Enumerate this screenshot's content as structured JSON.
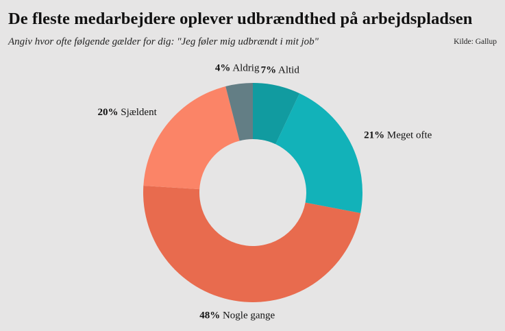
{
  "title": "De fleste medarbejdere oplever udbrændthed på arbejdspladsen",
  "subtitle": "Angiv hvor ofte følgende gælder for dig: \"Jeg føler mig udbrændt i mit job\"",
  "source": "Kilde: Gallup",
  "chart_data": {
    "type": "pie",
    "donut": true,
    "title": "De fleste medarbejdere oplever udbrændthed på arbejdspladsen",
    "subtitle": "Angiv hvor ofte følgende gælder for dig: \"Jeg føler mig udbrændt i mit job\"",
    "slices": [
      {
        "label": "Altid",
        "pct_label": "7%",
        "value": 7,
        "color": "#119ba0"
      },
      {
        "label": "Meget ofte",
        "pct_label": "21%",
        "value": 21,
        "color": "#12b2b9"
      },
      {
        "label": "Nogle gange",
        "pct_label": "48%",
        "value": 48,
        "color": "#e86b4e"
      },
      {
        "label": "Sjældent",
        "pct_label": "20%",
        "value": 20,
        "color": "#fb8467"
      },
      {
        "label": "Aldrig",
        "pct_label": "4%",
        "value": 4,
        "color": "#637e85"
      }
    ],
    "start_angle": "12 o'clock",
    "direction": "clockwise",
    "legend": "none"
  }
}
